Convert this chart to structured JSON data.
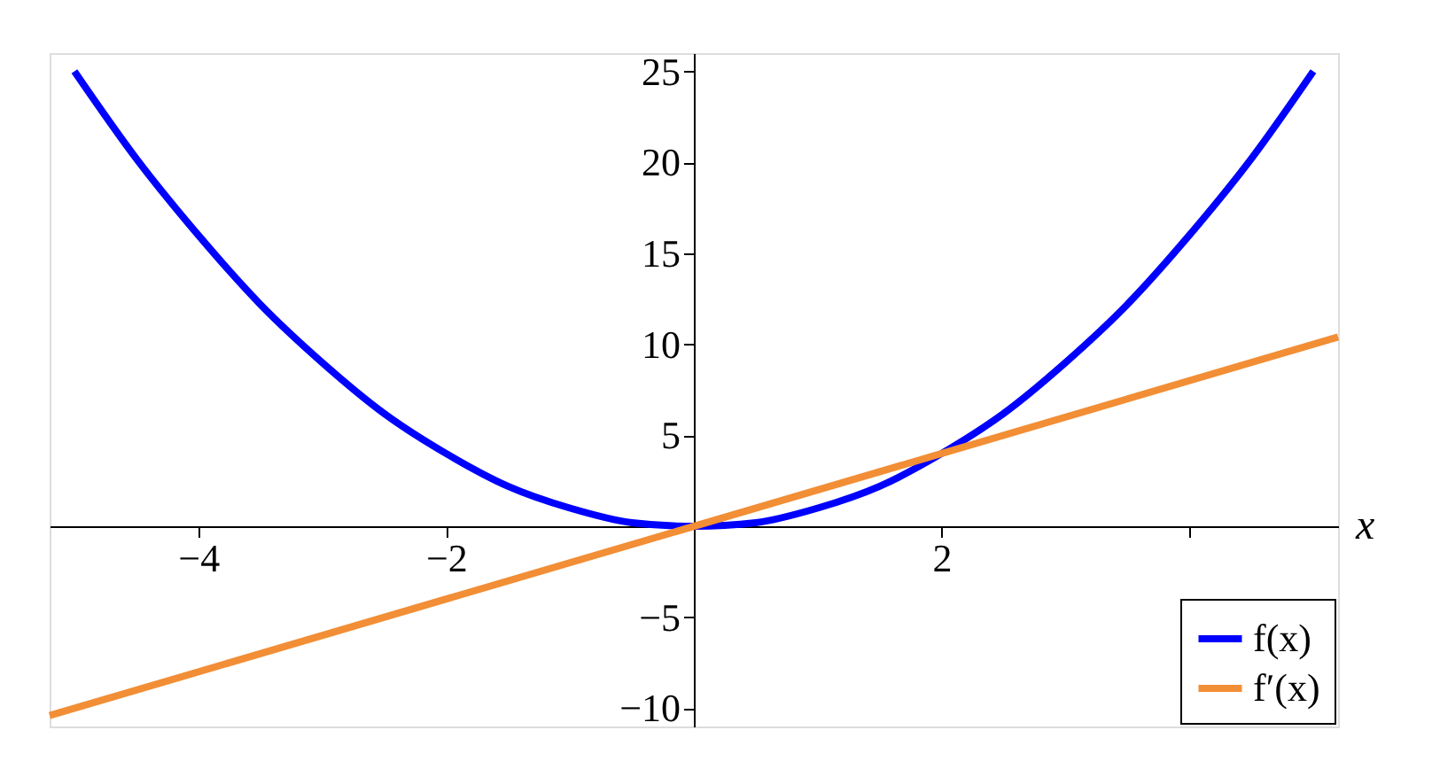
{
  "chart_data": {
    "type": "line",
    "xlabel": "x",
    "series": [
      {
        "name": "f(x)",
        "color": "#0000ff",
        "x": [
          -5,
          -4.5,
          -4,
          -3.5,
          -3,
          -2.5,
          -2,
          -1.5,
          -1,
          -0.5,
          0,
          0.5,
          1,
          1.5,
          2,
          2.5,
          3,
          3.5,
          4,
          4.5,
          5
        ],
        "values": [
          25,
          20.2,
          16,
          12.2,
          9,
          6.2,
          4,
          2.2,
          1,
          0.2,
          0,
          0.2,
          1,
          2.2,
          4,
          6.2,
          9,
          12.2,
          16,
          20.2,
          25
        ]
      },
      {
        "name": "f′(x)",
        "color": "#f28e35",
        "x": [
          -5.2,
          5.2
        ],
        "values": [
          -10.4,
          10.4
        ]
      }
    ],
    "xlim": [
      -5.2,
      5.2
    ],
    "ylim": [
      -11,
      26
    ],
    "xticks": [
      -4,
      -2,
      2,
      {
        "value": 4,
        "label": null
      }
    ],
    "yticks": [
      -10,
      -5,
      5,
      10,
      15,
      20,
      25
    ],
    "grid": false,
    "legend": "bottom right",
    "marker": "none",
    "line_style": "solid"
  }
}
